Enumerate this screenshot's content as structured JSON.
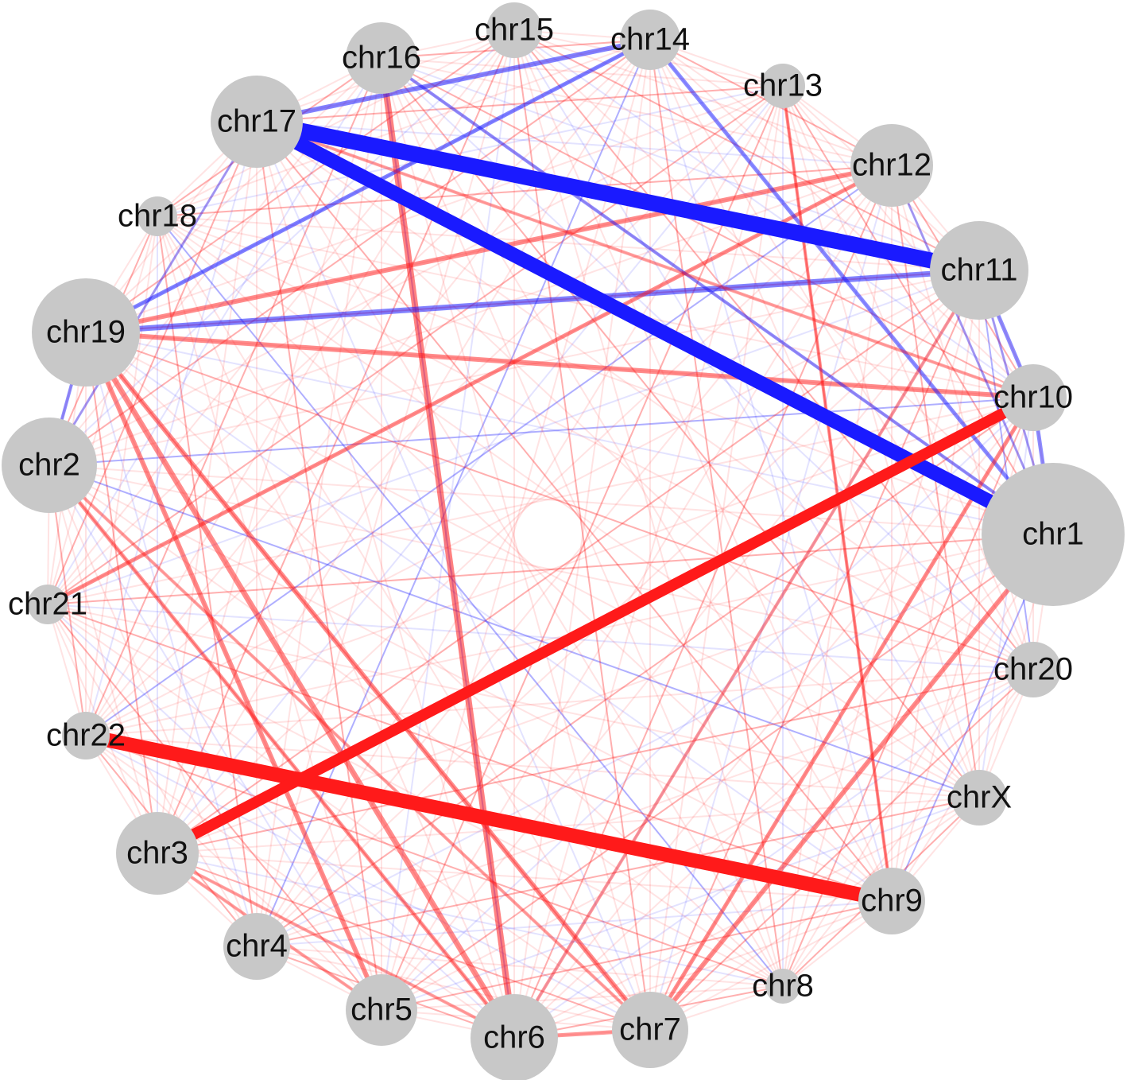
{
  "nodes": [
    {
      "label": "chr1"
    },
    {
      "label": "chr10"
    },
    {
      "label": "chr11"
    },
    {
      "label": "chr12"
    },
    {
      "label": "chr13"
    },
    {
      "label": "chr14"
    },
    {
      "label": "chr15"
    },
    {
      "label": "chr16"
    },
    {
      "label": "chr17"
    },
    {
      "label": "chr18"
    },
    {
      "label": "chr19"
    },
    {
      "label": "chr2"
    },
    {
      "label": "chr21"
    },
    {
      "label": "chr22"
    },
    {
      "label": "chr3"
    },
    {
      "label": "chr4"
    },
    {
      "label": "chr5"
    },
    {
      "label": "chr6"
    },
    {
      "label": "chr7"
    },
    {
      "label": "chr8"
    },
    {
      "label": "chr9"
    },
    {
      "label": "chrX"
    },
    {
      "label": "chr20"
    }
  ]
}
